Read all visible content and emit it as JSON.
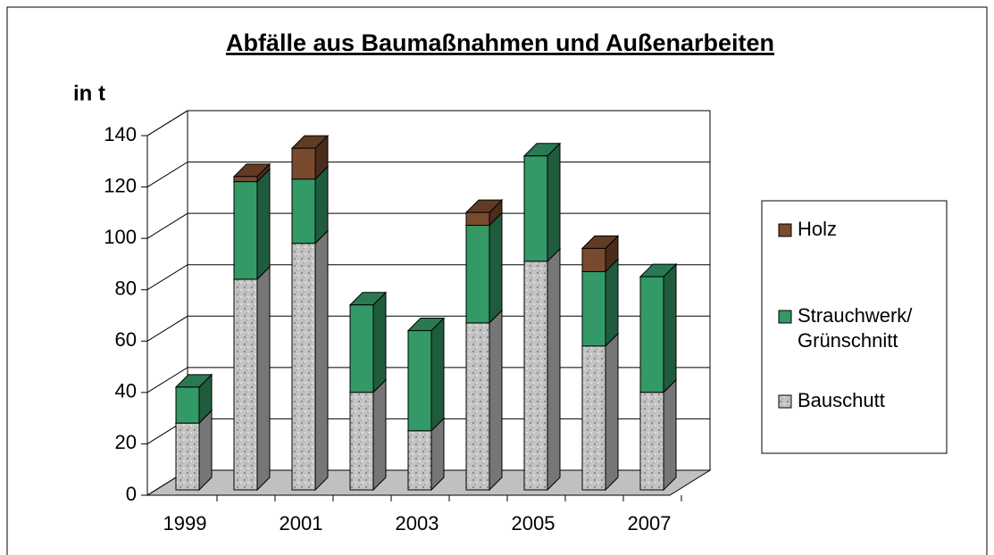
{
  "chart_data": {
    "type": "bar3d-stacked",
    "title": "Abfälle aus Baumaßnahmen und Außenarbeiten",
    "y_label": "in t",
    "categories": [
      "1999",
      null,
      "2001",
      null,
      "2003",
      null,
      "2005",
      null,
      "2007"
    ],
    "series": [
      {
        "name": "Bauschutt",
        "color": "#c4c4c4",
        "values": [
          26,
          82,
          96,
          38,
          23,
          65,
          89,
          56,
          38
        ]
      },
      {
        "name": "Strauchwerk/ Grünschnitt",
        "color": "#339966",
        "values": [
          14,
          38,
          25,
          34,
          39,
          38,
          41,
          29,
          45
        ]
      },
      {
        "name": "Holz",
        "color": "#7a4a2e",
        "values": [
          0,
          2,
          12,
          0,
          0,
          5,
          0,
          9,
          0
        ]
      }
    ],
    "ylim": [
      0,
      140
    ],
    "yticks": [
      0,
      20,
      40,
      60,
      80,
      100,
      120,
      140
    ],
    "grid": true
  }
}
